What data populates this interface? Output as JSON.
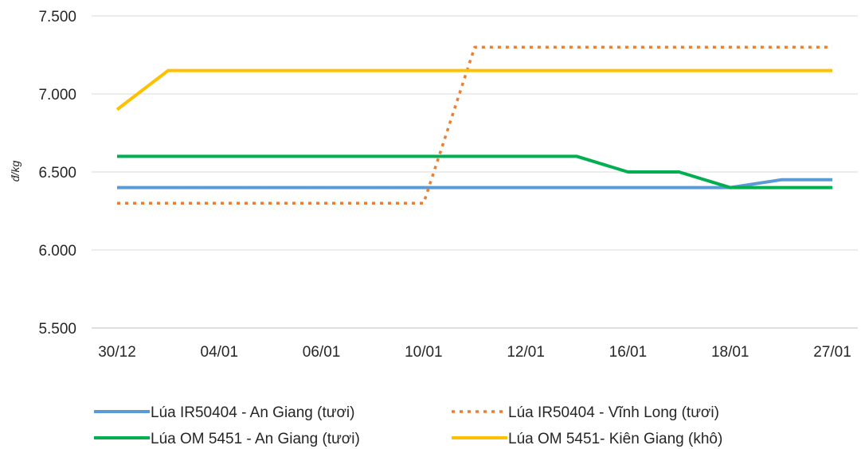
{
  "chart_data": {
    "type": "line",
    "ylabel": "đ/kg",
    "xlabel": "",
    "title": "",
    "ylim": [
      5500,
      7500
    ],
    "y_ticks": [
      "5.500",
      "6.000",
      "6.500",
      "7.000",
      "7.500"
    ],
    "y_tick_values": [
      5500,
      6000,
      6500,
      7000,
      7500
    ],
    "categories": [
      "30/12",
      "",
      "04/01",
      "",
      "06/01",
      "",
      "10/01",
      "",
      "12/01",
      "",
      "16/01",
      "",
      "18/01",
      "",
      "27/01"
    ],
    "series": [
      {
        "name": "Lúa IR50404 - An Giang  (tươi)",
        "color": "#5b9bd5",
        "dash": "solid",
        "values": [
          6400,
          6400,
          6400,
          6400,
          6400,
          6400,
          6400,
          6400,
          6400,
          6400,
          6400,
          6400,
          6400,
          6450,
          6450
        ]
      },
      {
        "name": "Lúa IR50404 - Vĩnh Long  (tươi)",
        "color": "#ed7d31",
        "dash": "dotted",
        "values": [
          6300,
          6300,
          6300,
          6300,
          6300,
          6300,
          6300,
          7300,
          7300,
          7300,
          7300,
          7300,
          7300,
          7300,
          7300
        ]
      },
      {
        "name": "Lúa OM 5451 - An Giang (tươi)",
        "color": "#00b050",
        "dash": "solid",
        "values": [
          6600,
          6600,
          6600,
          6600,
          6600,
          6600,
          6600,
          6600,
          6600,
          6600,
          6500,
          6500,
          6400,
          6400,
          6400
        ]
      },
      {
        "name": "Lúa OM 5451- Kiên Giang (khô)",
        "color": "#ffc000",
        "dash": "solid",
        "values": [
          6900,
          7150,
          7150,
          7150,
          7150,
          7150,
          7150,
          7150,
          7150,
          7150,
          7150,
          7150,
          7150,
          7150,
          7150
        ]
      }
    ],
    "grid": "horizontal",
    "legend_position": "bottom"
  }
}
